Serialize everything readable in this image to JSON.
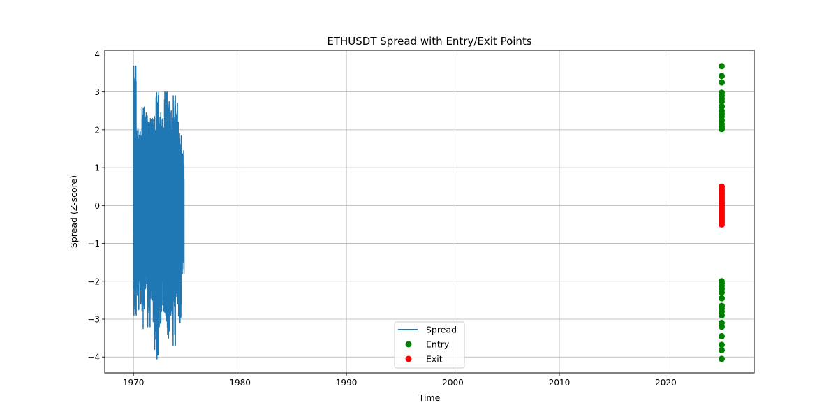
{
  "chart_data": {
    "type": "line",
    "title": "ETHUSDT Spread with Entry/Exit Points",
    "xlabel": "Time",
    "ylabel": "Spread (Z-score)",
    "xlim": [
      1967.3,
      2028.3
    ],
    "ylim": [
      -4.42,
      4.1
    ],
    "x_ticks": [
      1970,
      1980,
      1990,
      2000,
      2010,
      2020
    ],
    "x_tick_labels": [
      "1970",
      "1980",
      "1990",
      "2000",
      "2010",
      "2020"
    ],
    "y_ticks": [
      -4,
      -3,
      -2,
      -1,
      0,
      1,
      2,
      3,
      4
    ],
    "y_tick_labels": [
      "−4",
      "−3",
      "−2",
      "−1",
      "0",
      "1",
      "2",
      "3",
      "4"
    ],
    "grid": true,
    "legend_position": "bottom-center",
    "series": [
      {
        "name": "Spread",
        "kind": "line",
        "color": "#1f77b4",
        "x_range": [
          1970.0,
          1974.75
        ],
        "peaks_max": [
          3.68,
          2.05,
          1.95,
          2.6,
          2.45,
          2.2,
          2.3,
          2.35,
          2.98,
          2.45,
          2.3,
          3.0,
          2.75,
          2.5,
          2.9,
          2.7,
          1.9,
          1.45
        ],
        "peaks_min": [
          -2.9,
          -2.75,
          -2.6,
          -3.25,
          -2.2,
          -3.2,
          -2.5,
          -3.8,
          -4.05,
          -3.2,
          -2.8,
          -3.05,
          -3.5,
          -2.9,
          -3.7,
          -2.6,
          -3.1,
          -1.8
        ]
      },
      {
        "name": "Entry",
        "kind": "scatter",
        "color": "#008000",
        "x": 2025.25,
        "y": [
          3.68,
          3.42,
          3.25,
          2.98,
          2.9,
          2.82,
          2.75,
          2.62,
          2.5,
          2.42,
          2.35,
          2.25,
          2.15,
          2.08,
          2.02,
          -2.0,
          -2.05,
          -2.12,
          -2.2,
          -2.3,
          -2.45,
          -2.65,
          -2.72,
          -2.8,
          -2.9,
          -3.1,
          -3.2,
          -3.45,
          -3.68,
          -3.82,
          -4.05
        ]
      },
      {
        "name": "Exit",
        "kind": "scatter",
        "color": "#ff0000",
        "x": 2025.25,
        "y": [
          0.5,
          0.45,
          0.4,
          0.35,
          0.3,
          0.25,
          0.2,
          0.15,
          0.1,
          0.05,
          0.0,
          -0.05,
          -0.1,
          -0.15,
          -0.2,
          -0.25,
          -0.3,
          -0.35,
          -0.4,
          -0.45,
          -0.5
        ]
      }
    ]
  },
  "legend": {
    "items": [
      {
        "label": "Spread",
        "color": "#1f77b4",
        "kind": "line"
      },
      {
        "label": "Entry",
        "color": "#008000",
        "kind": "marker"
      },
      {
        "label": "Exit",
        "color": "#ff0000",
        "kind": "marker"
      }
    ]
  }
}
